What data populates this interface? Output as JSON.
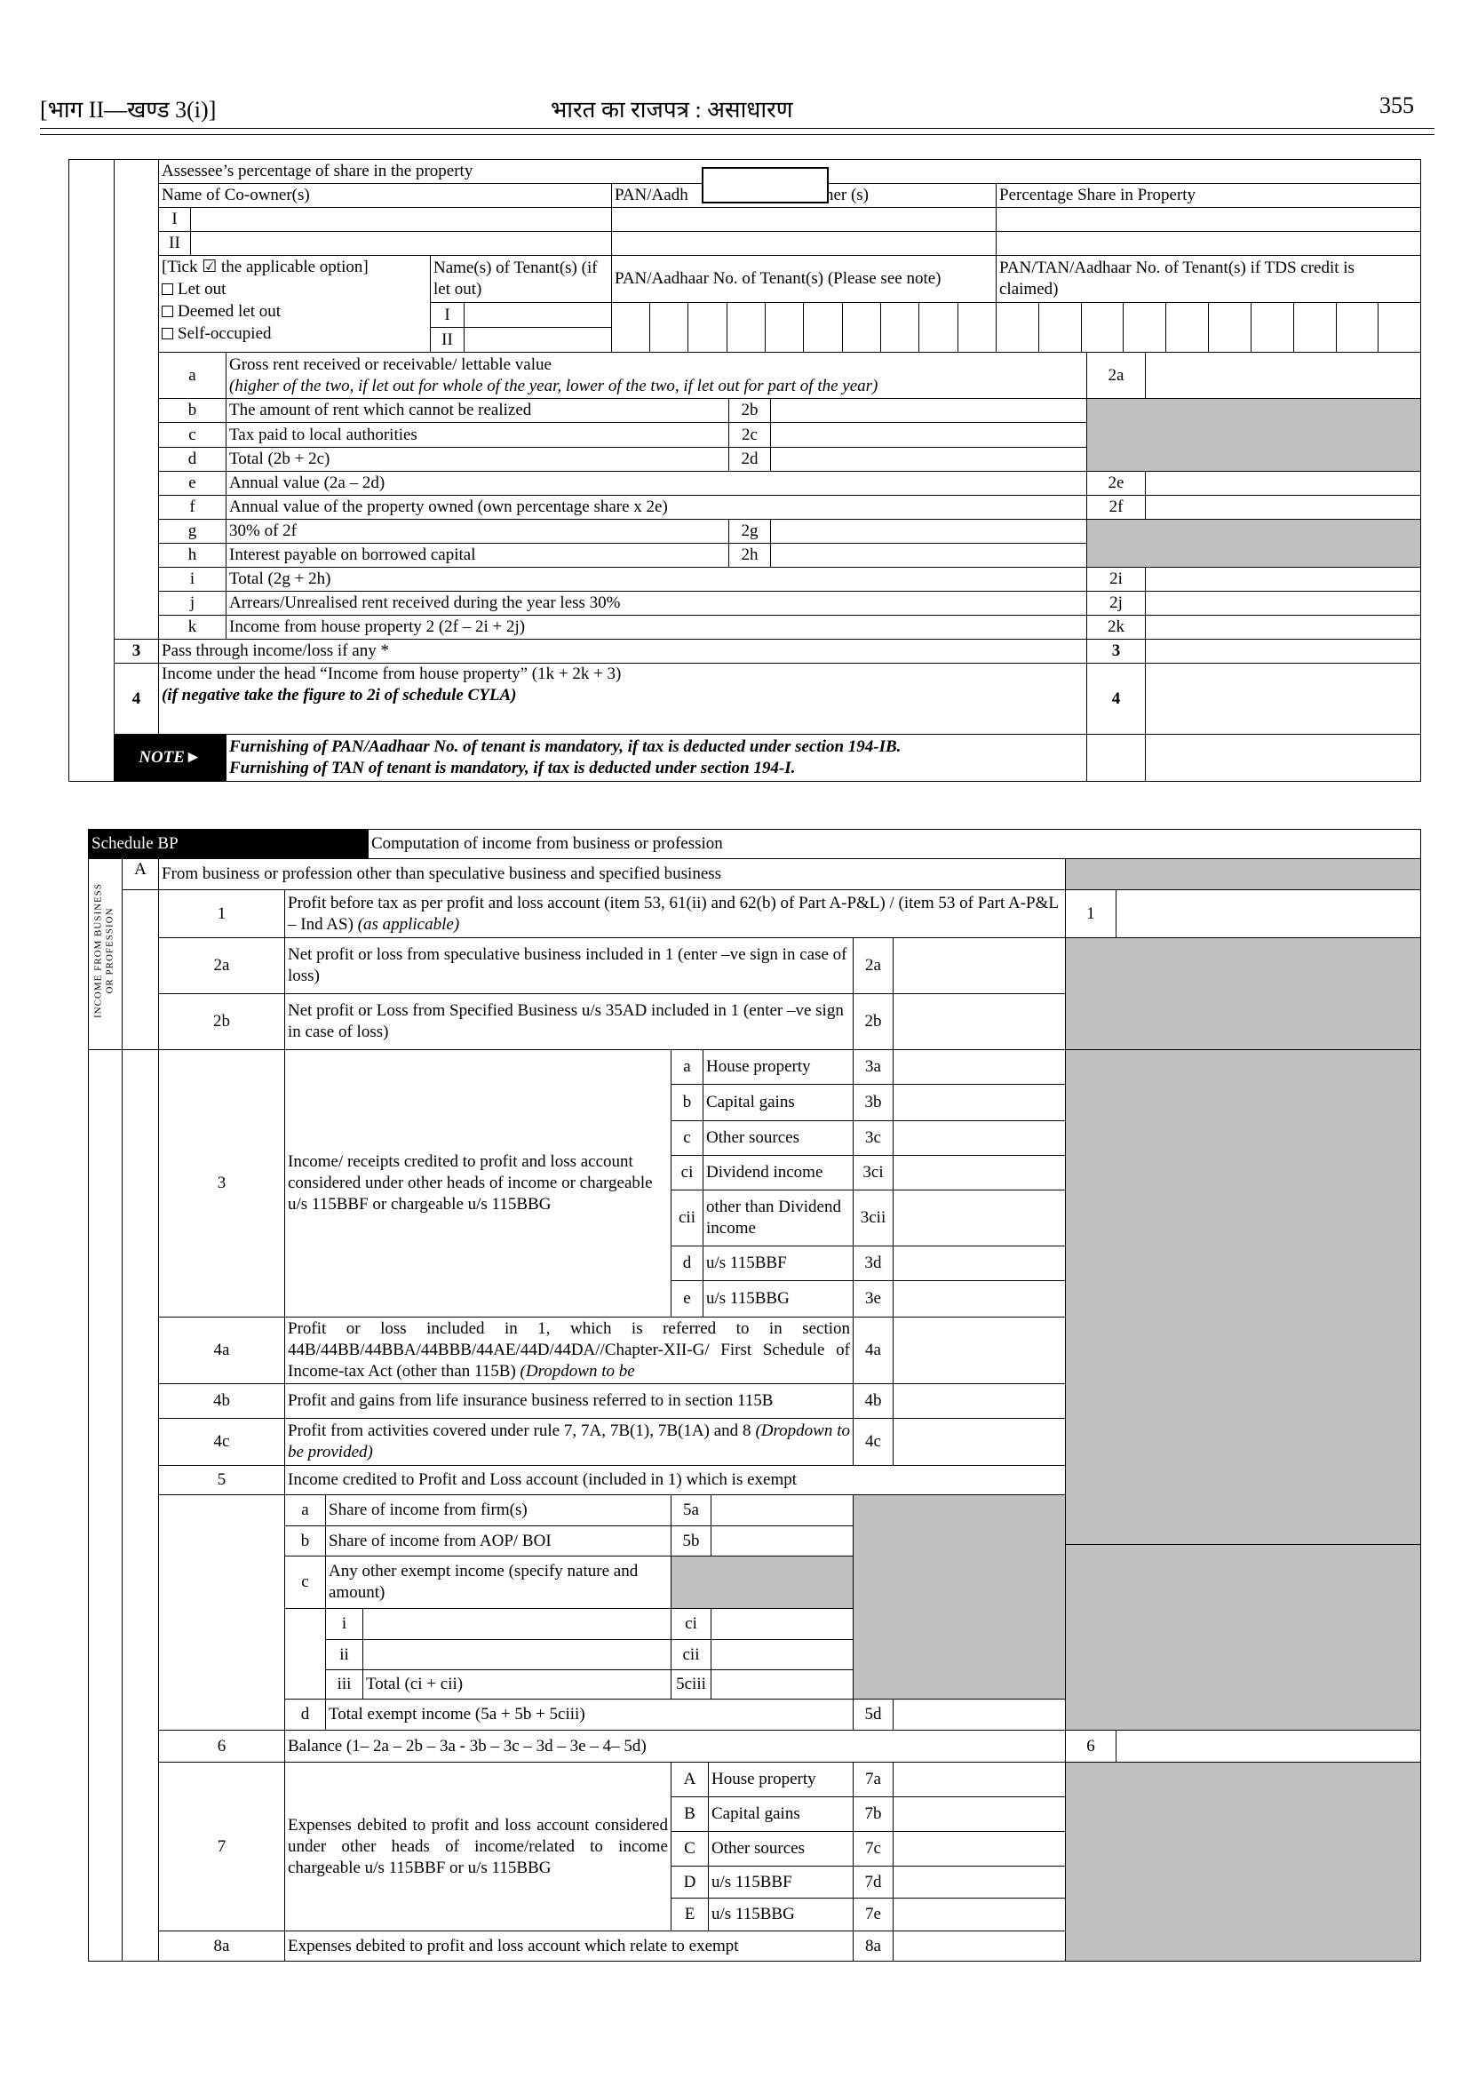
{
  "header": {
    "part": "[भाग II—खण्ड 3(i)]",
    "title": "भारत का राजपत्र : असाधारण",
    "page": "355"
  },
  "hp": {
    "share_label": "Assessee’s percentage of share in the property",
    "coowner_name_header": "Name of Co-owner(s)",
    "coowner_pan_header_left": "PAN/Aadh",
    "coowner_pan_header_right": "owner (s)",
    "percentage_header": "Percentage Share in Property",
    "coowner_rows": [
      "I",
      "II"
    ],
    "tick_header": "[Tick ☑ the applicable option]",
    "options": [
      "Let out",
      "Deemed let out",
      "Self-occupied"
    ],
    "tenant_name_header": "Name(s) of Tenant(s) (if let out)",
    "tenant_rows": [
      "I",
      "II"
    ],
    "tenant_pan_header": "PAN/Aadhaar No. of Tenant(s)   (Please see note)",
    "tenant_tds_header": "PAN/TAN/Aadhaar No. of Tenant(s) if TDS credit is claimed)",
    "rows": [
      {
        "letter": "a",
        "text": "Gross rent received or receivable/ lettable value",
        "note": "(higher of the two, if let out for whole of the year, lower of the two, if let out for part of the year)",
        "code": "2a"
      },
      {
        "letter": "b",
        "text": "The amount of rent which cannot be realized",
        "code": "2b"
      },
      {
        "letter": "c",
        "text": "Tax paid to local authorities",
        "code": "2c"
      },
      {
        "letter": "d",
        "text": "Total (2b + 2c)",
        "code": "2d"
      },
      {
        "letter": "e",
        "text": "Annual value (2a – 2d)",
        "code": "2e"
      },
      {
        "letter": "f",
        "text": "Annual value of the property owned (own percentage share x 2e)",
        "code": "2f"
      },
      {
        "letter": "g",
        "text": "30% of 2f",
        "code": "2g"
      },
      {
        "letter": "h",
        "text": "Interest payable on borrowed capital",
        "code": "2h"
      },
      {
        "letter": "i",
        "text": "Total (2g + 2h)",
        "code": "2i"
      },
      {
        "letter": "j",
        "text": "Arrears/Unrealised rent received during the year less 30%",
        "code": "2j"
      },
      {
        "letter": "k",
        "text": "Income from house property 2 (2f – 2i + 2j)",
        "code": "2k"
      }
    ],
    "row3": {
      "num": "3",
      "text": "Pass through income/loss if any *",
      "code": "3"
    },
    "row4": {
      "num": "4",
      "text": "Income under the head “Income from house property” (1k + 2k + 3)",
      "note": "(if negative take the figure to 2i of schedule CYLA)",
      "code": "4"
    },
    "note_label": "NOTE►",
    "note_lines": [
      "Furnishing of PAN/Aadhaar No. of tenant is mandatory, if tax is deducted under section 194-IB.",
      "Furnishing of TAN of tenant is mandatory, if tax is deducted under section 194-I."
    ]
  },
  "bp": {
    "schedule": "Schedule BP",
    "title": "Computation of income from business or profession",
    "side_label_1": "INCOME FROM BUSINESS",
    "side_label_2": "OR PROFESSION",
    "sectionA": {
      "letter": "A",
      "text": "From business or profession other than speculative business and specified business"
    },
    "r1": {
      "num": "1",
      "text": "Profit before tax as per profit and loss account (item 53, 61(ii) and 62(b) of Part A-P&L) / (item 53 of Part A-P&L – Ind AS)",
      "note": "(as applicable)",
      "code": "1"
    },
    "r2a": {
      "num": "2a",
      "text": "Net profit or loss from speculative business included in 1 (enter –ve sign in case of loss)",
      "code": "2a"
    },
    "r2b": {
      "num": "2b",
      "text": "Net profit or Loss from Specified Business u/s 35AD included in 1 (enter –ve sign in case of loss)",
      "code": "2b"
    },
    "r3": {
      "num": "3",
      "text": "Income/ receipts credited to profit and loss account considered under other heads of income or chargeable u/s 115BBF or chargeable u/s 115BBG",
      "subs": [
        {
          "letter": "a",
          "label": "House property",
          "code": "3a"
        },
        {
          "letter": "b",
          "label": "Capital gains",
          "code": "3b"
        },
        {
          "letter": "c",
          "label": "Other sources",
          "code": "3c"
        },
        {
          "letter": "ci",
          "label": "Dividend income",
          "code": "3ci"
        },
        {
          "letter": "cii",
          "label": "other than Dividend income",
          "code": "3cii"
        },
        {
          "letter": "d",
          "label": "u/s 115BBF",
          "code": "3d"
        },
        {
          "letter": "e",
          "label": "u/s 115BBG",
          "code": "3e"
        }
      ]
    },
    "r4a": {
      "num": "4a",
      "text": "Profit or loss included in 1, which is referred to in section 44B/44BB/44BBA/44BBB/44AE/44D/44DA//Chapter-XII-G/ First Schedule of Income-tax Act (other than 115B)",
      "note": "(Dropdown to be",
      "code": "4a"
    },
    "r4b": {
      "num": "4b",
      "text": "Profit and gains from life insurance business referred to in section 115B",
      "code": "4b"
    },
    "r4c": {
      "num": "4c",
      "text": "Profit from activities covered under rule 7, 7A, 7B(1), 7B(1A) and 8",
      "note": "(Dropdown to be provided)",
      "code": "4c"
    },
    "r5": {
      "num": "5",
      "text": "Income credited to Profit and Loss account (included in 1) which is exempt",
      "a": {
        "letter": "a",
        "text": "Share of income from firm(s)",
        "code": "5a"
      },
      "b": {
        "letter": "b",
        "text": "Share of income from AOP/ BOI",
        "code": "5b"
      },
      "c": {
        "letter": "c",
        "text": "Any other exempt income (specify nature and amount)"
      },
      "c_rows": [
        {
          "roman": "i",
          "text": "",
          "code": "ci"
        },
        {
          "roman": "ii",
          "text": "",
          "code": "cii"
        },
        {
          "roman": "iii",
          "text": "Total (ci + cii)",
          "code": "5ciii"
        }
      ],
      "d": {
        "letter": "d",
        "text": "Total exempt income (5a + 5b + 5ciii)",
        "code": "5d"
      }
    },
    "r6": {
      "num": "6",
      "text": "Balance (1– 2a – 2b – 3a - 3b – 3c – 3d – 3e – 4– 5d)",
      "code": "6"
    },
    "r7": {
      "num": "7",
      "text": "Expenses debited to profit and loss account considered under other heads of income/related to income chargeable u/s 115BBF or u/s 115BBG",
      "subs": [
        {
          "letter": "A",
          "label": "House property",
          "code": "7a"
        },
        {
          "letter": "B",
          "label": "Capital gains",
          "code": "7b"
        },
        {
          "letter": "C",
          "label": "Other sources",
          "code": "7c"
        },
        {
          "letter": "D",
          "label": "u/s 115BBF",
          "code": "7d"
        },
        {
          "letter": "E",
          "label": "u/s 115BBG",
          "code": "7e"
        }
      ]
    },
    "r8a": {
      "num": "8a",
      "text": "Expenses debited to profit and loss account which relate to exempt",
      "code": "8a"
    }
  }
}
